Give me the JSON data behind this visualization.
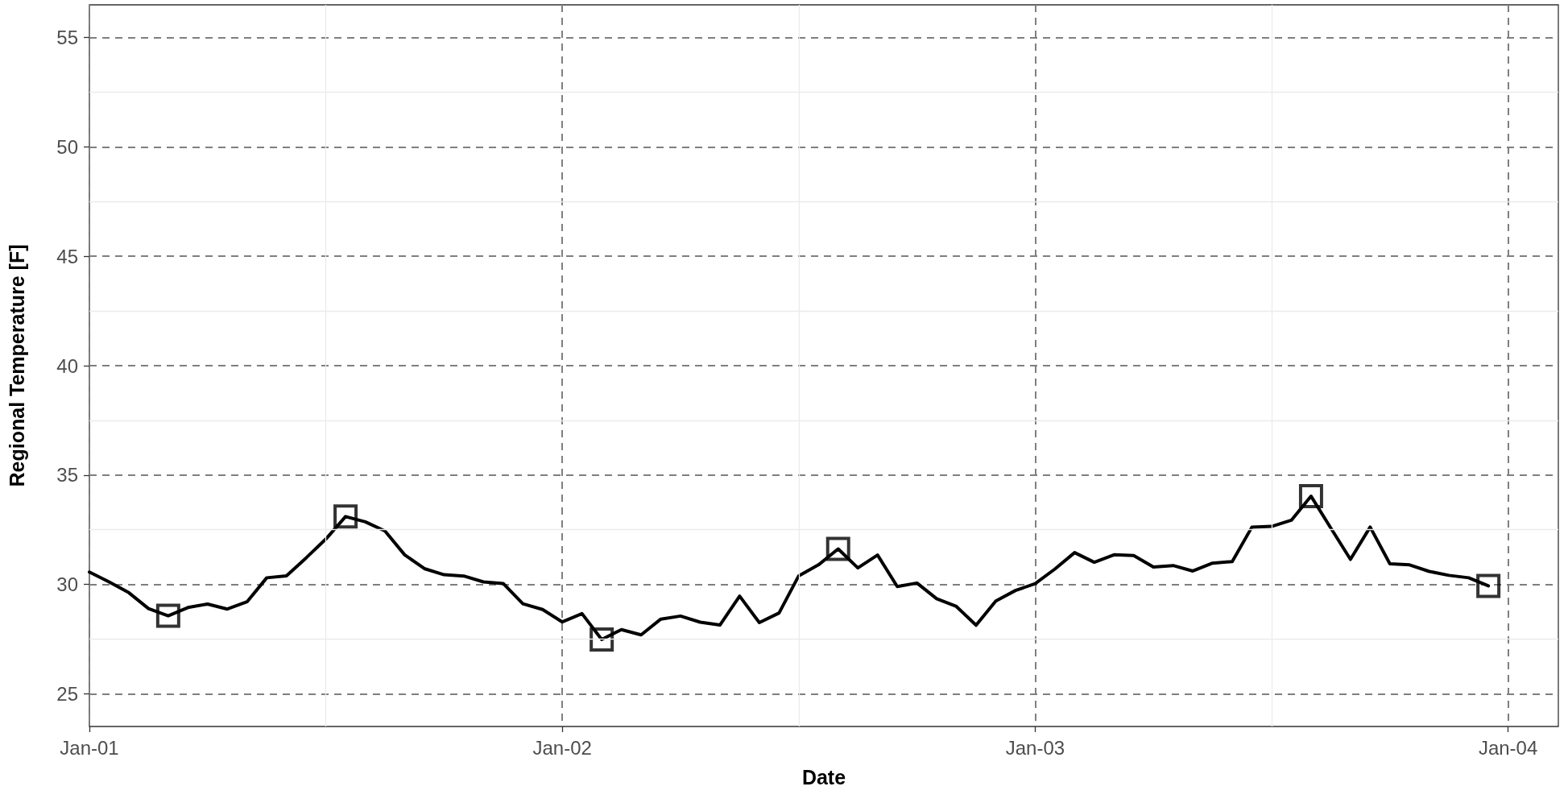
{
  "chart_data": {
    "type": "line",
    "xlabel": "Date",
    "ylabel": "Regional Temperature [F]",
    "xlim": [
      "--01-01T00:00",
      "--01-04T02:33"
    ],
    "xticks": [
      {
        "value": "--01-01T00:00",
        "label": "Jan-01"
      },
      {
        "value": "--01-02T00:00",
        "label": "Jan-02"
      },
      {
        "value": "--01-03T00:00",
        "label": "Jan-03"
      },
      {
        "value": "--01-04T00:00",
        "label": "Jan-04"
      }
    ],
    "ylim": [
      23.5,
      56.5
    ],
    "yticks": [
      25,
      30,
      35,
      40,
      45,
      50,
      55
    ],
    "grid": true,
    "x": [
      "--01-01T00:00",
      "--01-01T01:00",
      "--01-01T02:00",
      "--01-01T03:00",
      "--01-01T04:00",
      "--01-01T05:00",
      "--01-01T06:00",
      "--01-01T07:00",
      "--01-01T08:00",
      "--01-01T09:00",
      "--01-01T10:00",
      "--01-01T11:00",
      "--01-01T12:00",
      "--01-01T13:00",
      "--01-01T14:00",
      "--01-01T15:00",
      "--01-01T16:00",
      "--01-01T17:00",
      "--01-01T18:00",
      "--01-01T19:00",
      "--01-01T20:00",
      "--01-01T21:00",
      "--01-01T22:00",
      "--01-01T23:00",
      "--01-02T00:00",
      "--01-02T01:00",
      "--01-02T02:00",
      "--01-02T03:00",
      "--01-02T04:00",
      "--01-02T05:00",
      "--01-02T06:00",
      "--01-02T07:00",
      "--01-02T08:00",
      "--01-02T09:00",
      "--01-02T10:00",
      "--01-02T11:00",
      "--01-02T12:00",
      "--01-02T13:00",
      "--01-02T14:00",
      "--01-02T15:00",
      "--01-02T16:00",
      "--01-02T17:00",
      "--01-02T18:00",
      "--01-02T19:00",
      "--01-02T20:00",
      "--01-02T21:00",
      "--01-02T22:00",
      "--01-02T23:00",
      "--01-03T00:00",
      "--01-03T01:00",
      "--01-03T02:00",
      "--01-03T03:00",
      "--01-03T04:00",
      "--01-03T05:00",
      "--01-03T06:00",
      "--01-03T07:00",
      "--01-03T08:00",
      "--01-03T09:00",
      "--01-03T10:00",
      "--01-03T11:00",
      "--01-03T12:00",
      "--01-03T13:00",
      "--01-03T14:00",
      "--01-03T15:00",
      "--01-03T16:00",
      "--01-03T17:00",
      "--01-03T18:00",
      "--01-03T19:00",
      "--01-03T20:00",
      "--01-03T21:00",
      "--01-03T22:00",
      "--01-03T23:00"
    ],
    "series": [
      {
        "color": "#000000",
        "marker": "none",
        "line_style": "solid",
        "values": [
          30.56,
          30.11,
          29.62,
          28.89,
          28.56,
          28.94,
          29.1,
          28.87,
          29.2,
          30.3,
          30.39,
          31.21,
          32.07,
          33.1,
          32.86,
          32.44,
          31.35,
          30.72,
          30.44,
          30.38,
          30.11,
          30.04,
          29.11,
          28.85,
          28.28,
          28.66,
          27.48,
          27.93,
          27.69,
          28.41,
          28.55,
          28.27,
          28.14,
          29.46,
          28.25,
          28.69,
          30.39,
          30.89,
          31.62,
          30.75,
          31.34,
          29.9,
          30.06,
          29.34,
          28.99,
          28.13,
          29.24,
          29.72,
          30.03,
          30.7,
          31.45,
          31.01,
          31.35,
          31.32,
          30.79,
          30.86,
          30.61,
          30.97,
          31.04,
          32.62,
          32.65,
          32.93,
          34.03,
          32.58,
          31.14,
          32.62,
          30.94,
          30.89,
          30.59,
          30.41,
          30.3,
          29.93
        ]
      },
      {
        "type": "scatter",
        "color": "#000000",
        "marker": "square",
        "x": [
          "--01-01T04:00",
          "--01-01T13:00",
          "--01-02T02:00",
          "--01-02T14:00",
          "--01-03T14:00",
          "--01-03T23:00"
        ],
        "values": [
          28.56,
          33.1,
          27.48,
          31.62,
          34.03,
          29.93
        ]
      }
    ]
  }
}
